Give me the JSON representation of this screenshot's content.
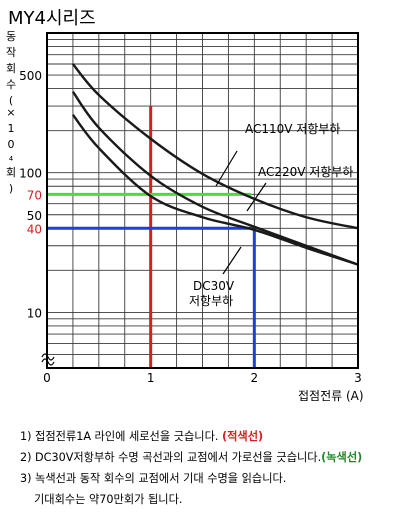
{
  "title": "MY4시리즈",
  "chart_data": {
    "type": "line",
    "xlabel": "접점전류 (A)",
    "ylabel": "동작회수(×10⁴회)",
    "xlim": [
      0,
      3
    ],
    "ylim": [
      4,
      1000
    ],
    "y_scale": "log",
    "x_ticks": [
      "0",
      "1",
      "2",
      "3"
    ],
    "y_ticks": [
      {
        "value": 500,
        "label": "500"
      },
      {
        "value": 100,
        "label": "100"
      },
      {
        "value": 70,
        "label": "70",
        "color": "#d81e1e"
      },
      {
        "value": 50,
        "label": "50"
      },
      {
        "value": 40,
        "label": "40",
        "color": "#d81e1e"
      },
      {
        "value": 10,
        "label": "10"
      }
    ],
    "series": [
      {
        "name": "AC110V 저항부하",
        "x": [
          0.25,
          0.5,
          1.0,
          1.5,
          2.0,
          2.5,
          3.0
        ],
        "y": [
          600,
          360,
          175,
          98,
          65,
          48,
          40
        ]
      },
      {
        "name": "AC220V 저항부하",
        "x": [
          0.25,
          0.5,
          1.0,
          1.5,
          2.0,
          2.5,
          3.0
        ],
        "y": [
          380,
          210,
          95,
          57,
          41,
          30,
          22
        ]
      },
      {
        "name": "DC30V 저항부하",
        "x": [
          0.25,
          0.5,
          1.0,
          1.5,
          2.0,
          2.5,
          3.0
        ],
        "y": [
          260,
          150,
          68,
          48,
          39,
          29,
          22
        ]
      }
    ],
    "guides": [
      {
        "kind": "vertical",
        "x": 1,
        "color": "#d81e1e"
      },
      {
        "kind": "horizontal",
        "y": 70,
        "color": "#4bdc3c"
      },
      {
        "kind": "horizontal",
        "y": 40,
        "color": "#1f3de0"
      },
      {
        "kind": "vertical",
        "x": 2,
        "color": "#1f3de0"
      }
    ],
    "grid": true
  },
  "steps": {
    "s1": "1) 접점전류1A 라인에   세로선을 긋습니다.",
    "s1_note": "(적색선)",
    "s2": "2) DC30V저항부하 수명 곡선과의 교점에서 가로선을 긋습니다.",
    "s2_note": "(녹색선)",
    "s3": "3) 녹색선과 동작 회수의 교점에서 기대 수명을 읽습니다.",
    "s4": "기대회수는 약70만회가 됩니다."
  }
}
